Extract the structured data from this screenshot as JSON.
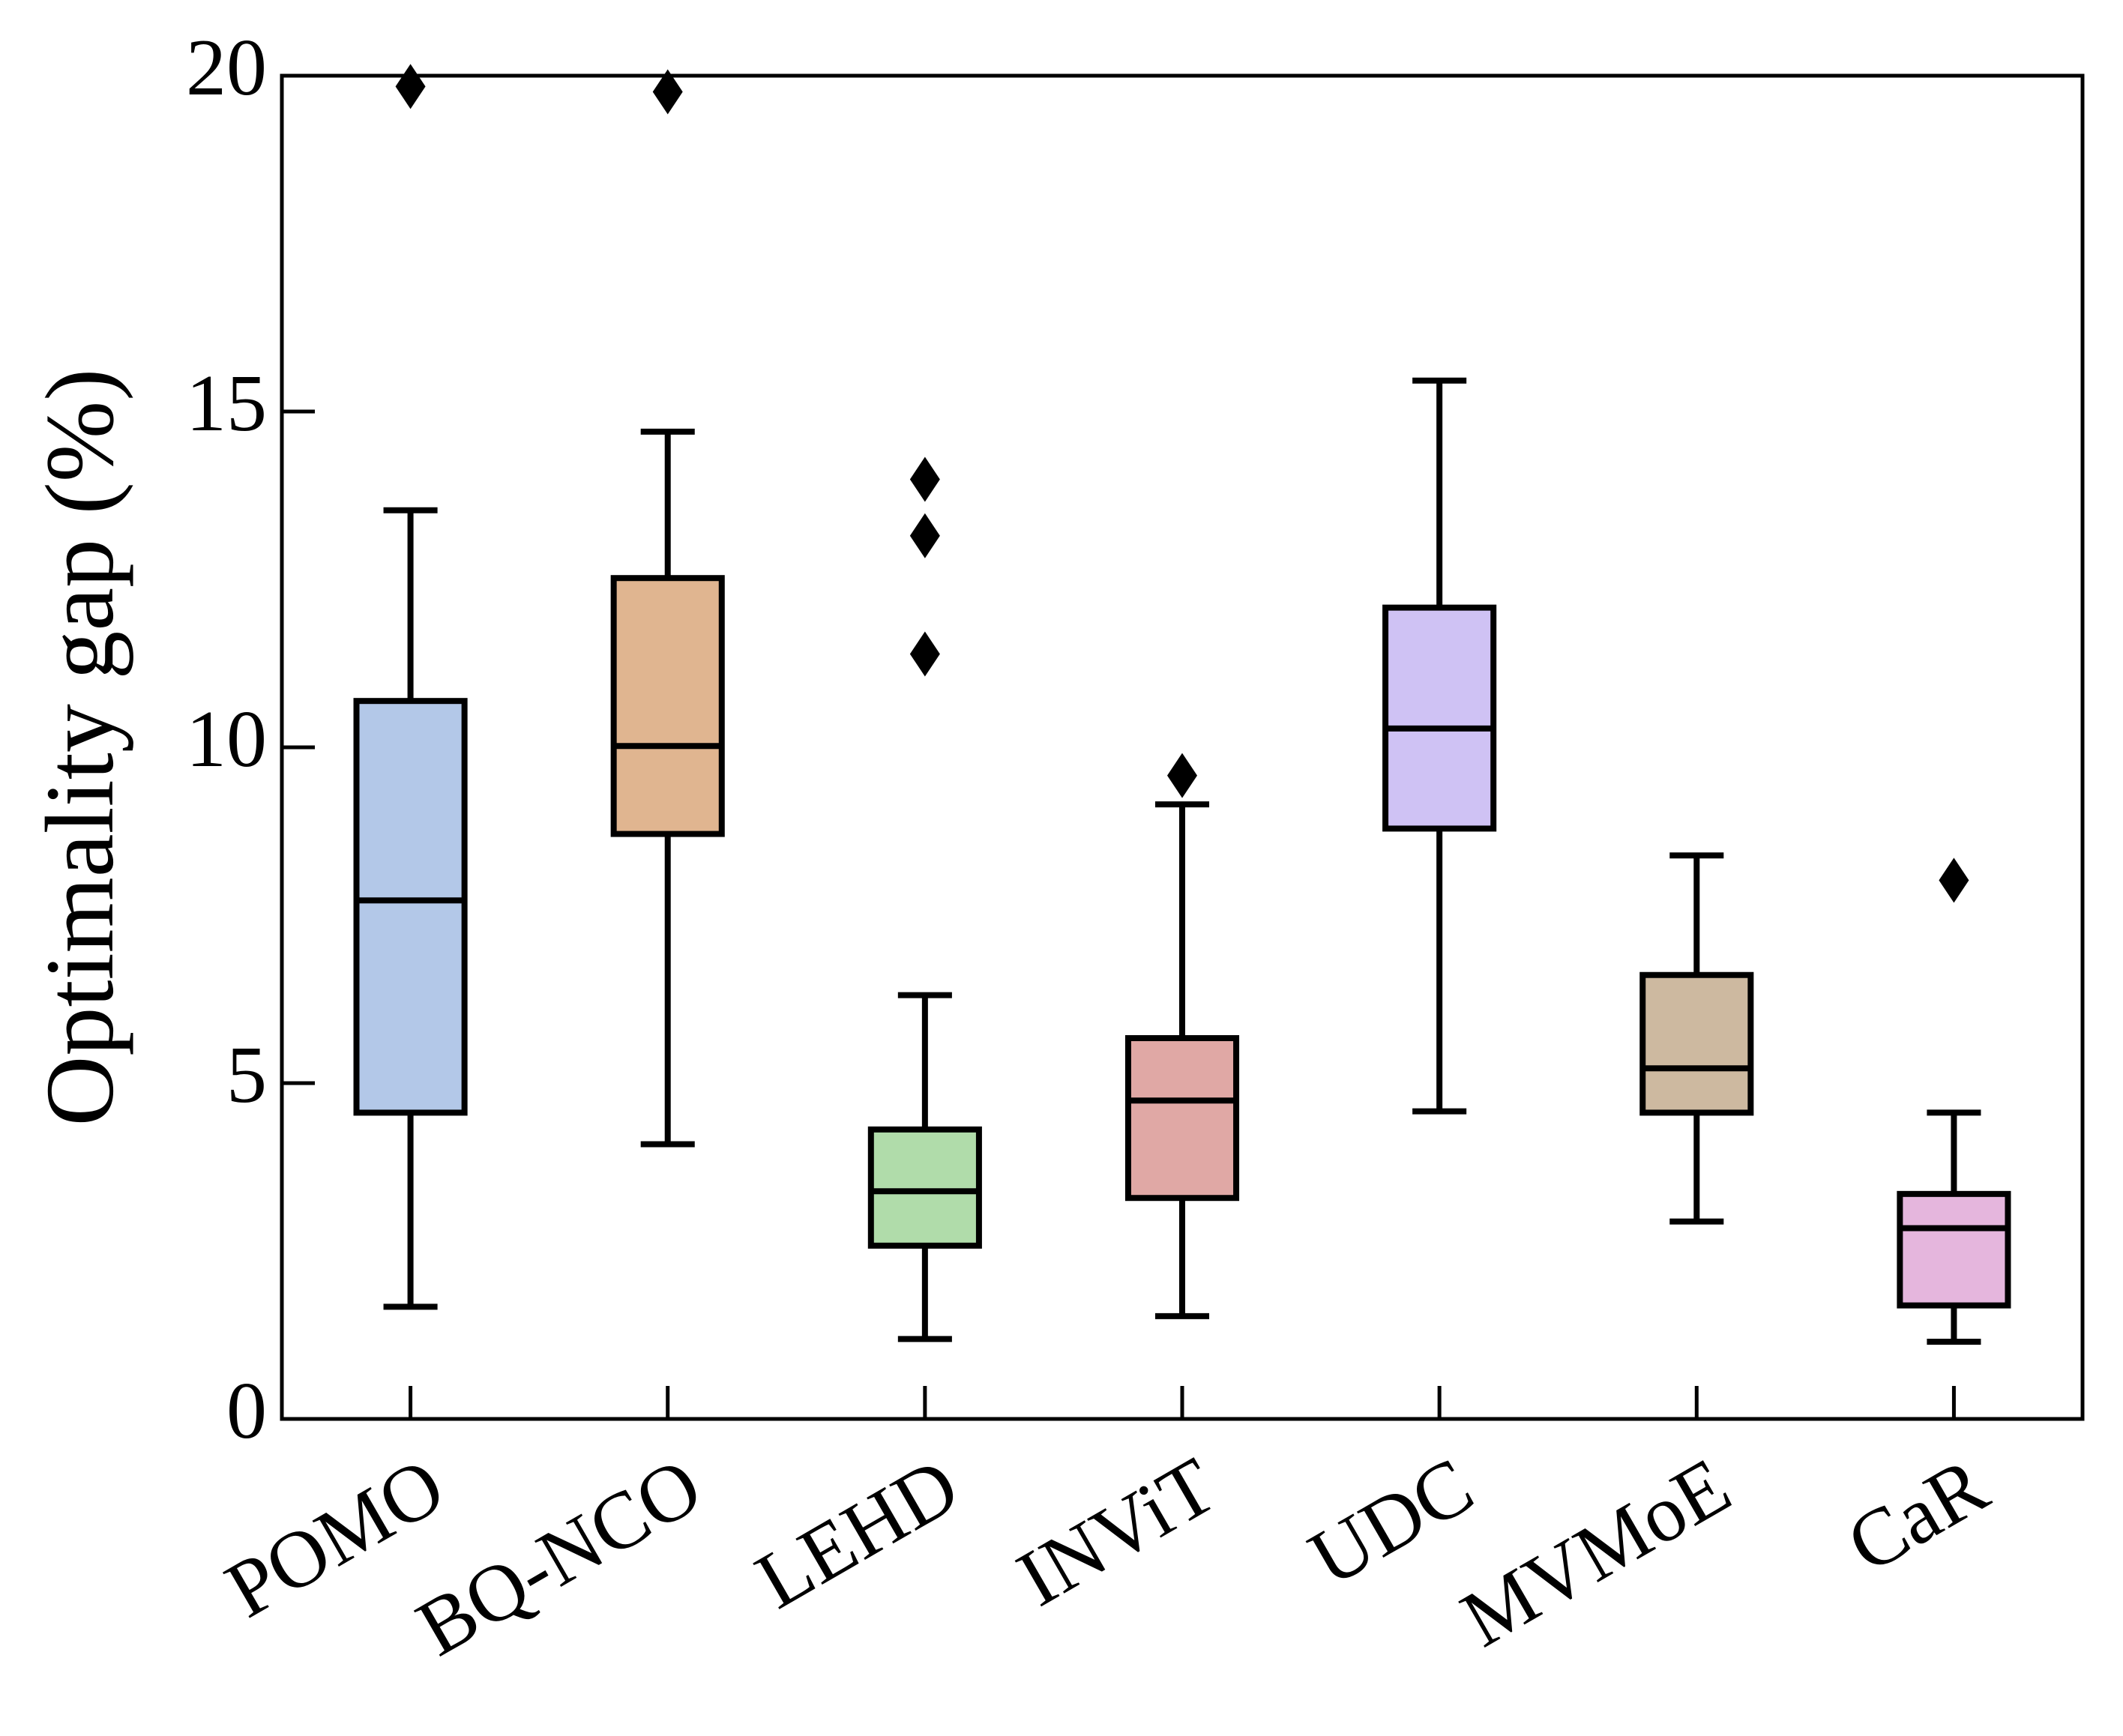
{
  "chart_data": {
    "type": "box",
    "ylabel": "Optimality gap (%)",
    "categories": [
      "POMO",
      "BQ-NCO",
      "LEHD",
      "INViT",
      "UDC",
      "MVMoE",
      "CaR"
    ],
    "boxes": [
      {
        "whislo": 1.67,
        "q1": 4.56,
        "med": 7.72,
        "q3": 10.69,
        "whishi": 13.53,
        "fliers": [
          19.84
        ]
      },
      {
        "whislo": 4.09,
        "q1": 8.71,
        "med": 10.02,
        "q3": 12.52,
        "whishi": 14.7,
        "fliers": [
          19.76
        ]
      },
      {
        "whislo": 1.19,
        "q1": 2.58,
        "med": 3.39,
        "q3": 4.31,
        "whishi": 6.31,
        "fliers": [
          13.99,
          13.15,
          11.39
        ]
      },
      {
        "whislo": 1.53,
        "q1": 3.29,
        "med": 4.74,
        "q3": 5.67,
        "whishi": 9.15,
        "fliers": [
          9.58
        ]
      },
      {
        "whislo": 4.58,
        "q1": 8.79,
        "med": 10.28,
        "q3": 12.08,
        "whishi": 15.46,
        "fliers": []
      },
      {
        "whislo": 2.94,
        "q1": 4.56,
        "med": 5.22,
        "q3": 6.61,
        "whishi": 8.39,
        "fliers": []
      },
      {
        "whislo": 1.15,
        "q1": 1.69,
        "med": 2.84,
        "q3": 3.35,
        "whishi": 4.56,
        "fliers": [
          8.02
        ]
      }
    ],
    "colors": [
      "#b3c8e8",
      "#e0b590",
      "#b0dcaa",
      "#e0a8a5",
      "#cfc2f4",
      "#cdb9a0",
      "#e5b6dd"
    ],
    "ylim": [
      0,
      20
    ],
    "yticks": [
      0,
      5,
      10,
      15,
      20
    ]
  }
}
